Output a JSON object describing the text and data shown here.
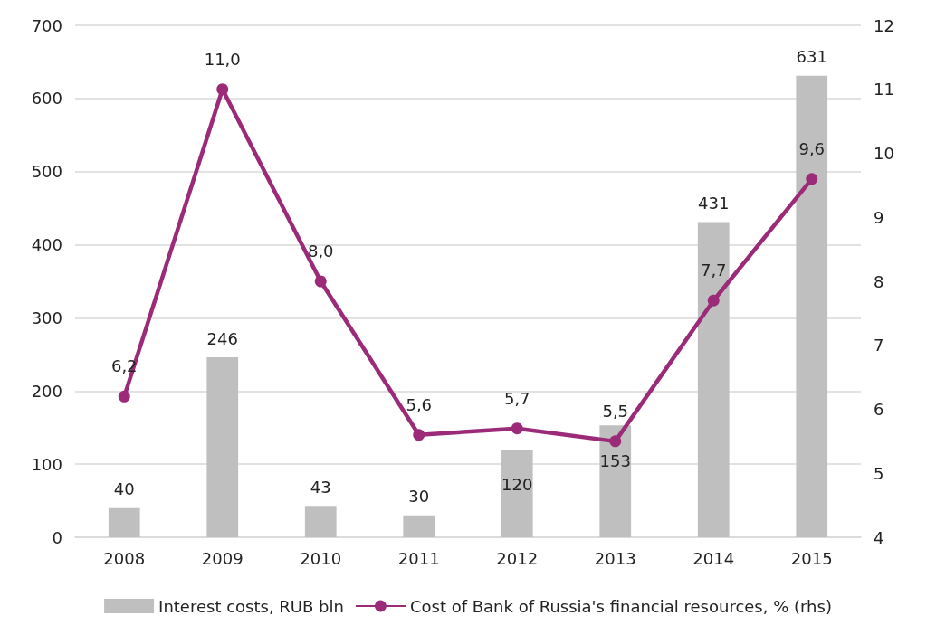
{
  "chart_data": {
    "type": "bar",
    "categories": [
      "2008",
      "2009",
      "2010",
      "2011",
      "2012",
      "2013",
      "2014",
      "2015"
    ],
    "series": [
      {
        "name": "Interest costs, RUB bln",
        "color": "#bfbfbf",
        "values": [
          40,
          246,
          43,
          30,
          120,
          153,
          431,
          631
        ],
        "value_labels": [
          "40",
          "246",
          "43",
          "30",
          "120",
          "153",
          "431",
          "631"
        ]
      },
      {
        "name": "Cost of Bank of Russia's financial resources, % (rhs)",
        "type": "line",
        "axis": "y2",
        "color": "#9b2a78",
        "marker": "circle",
        "values": [
          6.2,
          11.0,
          8.0,
          5.6,
          5.7,
          5.5,
          7.7,
          9.6
        ],
        "value_labels": [
          "6,2",
          "11,0",
          "8,0",
          "5,6",
          "5,7",
          "5,5",
          "7,7",
          "9,6"
        ]
      }
    ],
    "ylim": [
      0,
      700
    ],
    "yticks": [
      0,
      100,
      200,
      300,
      400,
      500,
      600,
      700
    ],
    "y2lim": [
      4,
      12
    ],
    "y2ticks": [
      4,
      5,
      6,
      7,
      8,
      9,
      10,
      11,
      12
    ],
    "grid": "y",
    "legend": "bottom"
  }
}
